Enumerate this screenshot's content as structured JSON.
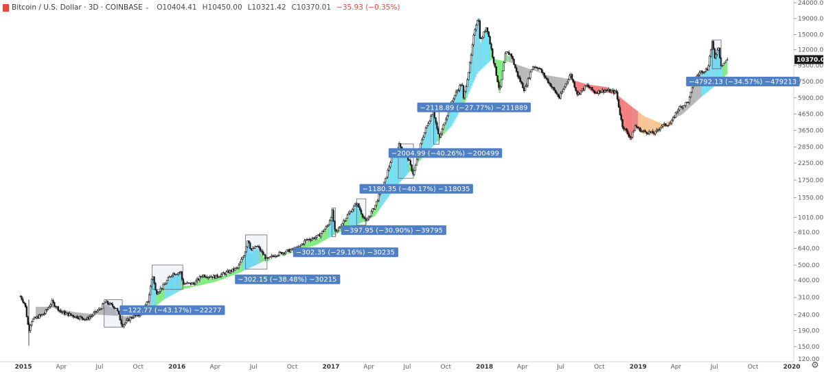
{
  "header": {
    "symbol": "Bitcoin / U.S. Dollar · 3D · COINBASE",
    "open": "O10404.41",
    "high": "H10450.00",
    "low": "L10321.42",
    "close": "C10370.01",
    "change": "−35.93 (−0.35%)"
  },
  "last_price": "10370.01",
  "colors": {
    "candle": "#1a1a1a",
    "annotation_bg": "#4f7fc4",
    "ribbon_bull": "#33dd33",
    "ribbon_cool": "#22c8e8",
    "ribbon_bear": "#e83030",
    "ribbon_neutral": "#8a8a8a",
    "ribbon_orange": "#f0a050"
  },
  "settings_icon": "gear-icon",
  "chart_data": {
    "type": "line",
    "scale": "log",
    "ylim": [
      125,
      24000
    ],
    "y_ticks": [
      "24000.00",
      "19000.00",
      "15000.00",
      "12000.00",
      "9500.00",
      "7500.00",
      "5900.00",
      "4650.00",
      "3650.00",
      "2850.00",
      "2250.00",
      "1750.00",
      "1350.00",
      "1010.00",
      "810.00",
      "640.00",
      "500.00",
      "400.00",
      "310.00",
      "240.00",
      "190.00",
      "150.00",
      "120.00"
    ],
    "x_ticks": [
      {
        "label": "2015",
        "date": "2015-01-01",
        "year": true
      },
      {
        "label": "Apr",
        "date": "2015-04-01"
      },
      {
        "label": "Jul",
        "date": "2015-07-01"
      },
      {
        "label": "Oct",
        "date": "2015-10-01"
      },
      {
        "label": "2016",
        "date": "2016-01-01",
        "year": true
      },
      {
        "label": "Apr",
        "date": "2016-04-01"
      },
      {
        "label": "Jul",
        "date": "2016-07-01"
      },
      {
        "label": "Oct",
        "date": "2016-10-01"
      },
      {
        "label": "2017",
        "date": "2017-01-01",
        "year": true
      },
      {
        "label": "Apr",
        "date": "2017-04-01"
      },
      {
        "label": "Jul",
        "date": "2017-07-01"
      },
      {
        "label": "Oct",
        "date": "2017-10-01"
      },
      {
        "label": "2018",
        "date": "2018-01-01",
        "year": true
      },
      {
        "label": "Apr",
        "date": "2018-04-01"
      },
      {
        "label": "Jul",
        "date": "2018-07-01"
      },
      {
        "label": "Oct",
        "date": "2018-10-01"
      },
      {
        "label": "2019",
        "date": "2019-01-01",
        "year": true
      },
      {
        "label": "Apr",
        "date": "2019-04-01"
      },
      {
        "label": "Jul",
        "date": "2019-07-01"
      },
      {
        "label": "Oct",
        "date": "2019-10-01"
      },
      {
        "label": "2020",
        "date": "2020-01-01",
        "year": true
      }
    ],
    "price_path": [
      [
        "2014-12-25",
        315
      ],
      [
        "2015-01-05",
        280
      ],
      [
        "2015-01-14",
        190
      ],
      [
        "2015-01-20",
        220
      ],
      [
        "2015-02-01",
        230
      ],
      [
        "2015-02-20",
        245
      ],
      [
        "2015-03-10",
        290
      ],
      [
        "2015-04-01",
        250
      ],
      [
        "2015-05-01",
        236
      ],
      [
        "2015-06-01",
        225
      ],
      [
        "2015-07-01",
        260
      ],
      [
        "2015-07-15",
        290
      ],
      [
        "2015-08-10",
        265
      ],
      [
        "2015-08-24",
        205
      ],
      [
        "2015-09-15",
        232
      ],
      [
        "2015-10-10",
        245
      ],
      [
        "2015-10-25",
        300
      ],
      [
        "2015-11-04",
        440
      ],
      [
        "2015-11-12",
        330
      ],
      [
        "2015-12-01",
        370
      ],
      [
        "2015-12-20",
        440
      ],
      [
        "2016-01-10",
        450
      ],
      [
        "2016-01-15",
        380
      ],
      [
        "2016-02-10",
        380
      ],
      [
        "2016-03-01",
        430
      ],
      [
        "2016-04-01",
        420
      ],
      [
        "2016-05-01",
        450
      ],
      [
        "2016-05-25",
        480
      ],
      [
        "2016-06-10",
        600
      ],
      [
        "2016-06-18",
        740
      ],
      [
        "2016-06-25",
        620
      ],
      [
        "2016-07-10",
        660
      ],
      [
        "2016-08-02",
        540
      ],
      [
        "2016-08-20",
        580
      ],
      [
        "2016-09-15",
        610
      ],
      [
        "2016-10-15",
        640
      ],
      [
        "2016-11-01",
        720
      ],
      [
        "2016-12-01",
        760
      ],
      [
        "2016-12-25",
        900
      ],
      [
        "2017-01-04",
        1100
      ],
      [
        "2017-01-11",
        790
      ],
      [
        "2017-02-01",
        970
      ],
      [
        "2017-03-03",
        1250
      ],
      [
        "2017-03-25",
        940
      ],
      [
        "2017-04-15",
        1190
      ],
      [
        "2017-05-10",
        1750
      ],
      [
        "2017-05-25",
        2450
      ],
      [
        "2017-06-12",
        2950
      ],
      [
        "2017-07-01",
        2500
      ],
      [
        "2017-07-16",
        1900
      ],
      [
        "2017-08-05",
        3200
      ],
      [
        "2017-08-20",
        4100
      ],
      [
        "2017-09-01",
        4900
      ],
      [
        "2017-09-15",
        3200
      ],
      [
        "2017-10-01",
        4400
      ],
      [
        "2017-10-20",
        6000
      ],
      [
        "2017-11-08",
        7400
      ],
      [
        "2017-11-12",
        5800
      ],
      [
        "2017-11-28",
        10000
      ],
      [
        "2017-12-08",
        16000
      ],
      [
        "2017-12-17",
        19700
      ],
      [
        "2017-12-22",
        13500
      ],
      [
        "2018-01-06",
        17000
      ],
      [
        "2018-01-20",
        11000
      ],
      [
        "2018-02-06",
        6500
      ],
      [
        "2018-02-20",
        11500
      ],
      [
        "2018-03-05",
        11200
      ],
      [
        "2018-03-20",
        8300
      ],
      [
        "2018-04-06",
        6600
      ],
      [
        "2018-04-25",
        9400
      ],
      [
        "2018-05-10",
        9200
      ],
      [
        "2018-06-01",
        7500
      ],
      [
        "2018-06-28",
        5900
      ],
      [
        "2018-07-24",
        8400
      ],
      [
        "2018-08-10",
        6200
      ],
      [
        "2018-09-01",
        7100
      ],
      [
        "2018-09-20",
        6400
      ],
      [
        "2018-10-15",
        6600
      ],
      [
        "2018-11-10",
        6400
      ],
      [
        "2018-11-20",
        4500
      ],
      [
        "2018-11-25",
        3900
      ],
      [
        "2018-12-15",
        3250
      ],
      [
        "2018-12-25",
        3900
      ],
      [
        "2019-01-10",
        3600
      ],
      [
        "2019-02-10",
        3500
      ],
      [
        "2019-02-25",
        3900
      ],
      [
        "2019-03-20",
        4050
      ],
      [
        "2019-04-05",
        5000
      ],
      [
        "2019-05-01",
        5600
      ],
      [
        "2019-05-15",
        7800
      ],
      [
        "2019-05-30",
        8700
      ],
      [
        "2019-06-15",
        9000
      ],
      [
        "2019-06-26",
        13500
      ],
      [
        "2019-07-02",
        10500
      ],
      [
        "2019-07-10",
        12800
      ],
      [
        "2019-07-17",
        9600
      ],
      [
        "2019-07-25",
        9900
      ],
      [
        "2019-08-01",
        10370
      ]
    ],
    "ribbon_path": [
      [
        "2015-01-20",
        270
      ],
      [
        "2015-03-01",
        270
      ],
      [
        "2015-05-01",
        250
      ],
      [
        "2015-07-01",
        240
      ],
      [
        "2015-09-01",
        235
      ],
      [
        "2015-10-20",
        245
      ],
      [
        "2015-12-01",
        300
      ],
      [
        "2016-01-15",
        350
      ],
      [
        "2016-04-01",
        390
      ],
      [
        "2016-06-01",
        450
      ],
      [
        "2016-08-01",
        540
      ],
      [
        "2016-10-01",
        600
      ],
      [
        "2016-12-01",
        680
      ],
      [
        "2017-01-15",
        800
      ],
      [
        "2017-03-01",
        900
      ],
      [
        "2017-04-15",
        1030
      ],
      [
        "2017-06-01",
        1550
      ],
      [
        "2017-07-15",
        2100
      ],
      [
        "2017-09-01",
        2900
      ],
      [
        "2017-10-15",
        3900
      ],
      [
        "2017-11-15",
        5500
      ],
      [
        "2017-12-15",
        8500
      ],
      [
        "2018-01-20",
        10500
      ],
      [
        "2018-03-01",
        10000
      ],
      [
        "2018-04-20",
        9000
      ],
      [
        "2018-06-01",
        8200
      ],
      [
        "2018-07-20",
        7800
      ],
      [
        "2018-09-01",
        7200
      ],
      [
        "2018-10-20",
        6900
      ],
      [
        "2018-12-01",
        5600
      ],
      [
        "2019-01-15",
        4500
      ],
      [
        "2019-03-01",
        4000
      ],
      [
        "2019-04-15",
        4600
      ],
      [
        "2019-06-01",
        6000
      ],
      [
        "2019-07-10",
        7300
      ],
      [
        "2019-08-01",
        8400
      ]
    ],
    "measurements": [
      {
        "start": "2015-07-12",
        "end": "2015-08-24",
        "high": 300,
        "low": 200,
        "label": "−122.77 (−43.17%) −22277",
        "label_at": [
          "2015-08-18",
          257
        ]
      },
      {
        "start": "2015-11-03",
        "end": "2016-01-15",
        "high": 500,
        "low": 350,
        "label": "−302.15 (−38.48%) −30215",
        "label_at": [
          "2016-05-18",
          405
        ]
      },
      {
        "start": "2016-06-12",
        "end": "2016-08-02",
        "high": 780,
        "low": 470,
        "label": "−302.35 (−29.16%) −30235",
        "label_at": [
          "2016-10-03",
          604
        ]
      },
      {
        "start": "2017-01-03",
        "end": "2017-01-12",
        "high": 1160,
        "low": 760,
        "label": "−397.95 (−30.90%) −39795",
        "label_at": [
          "2017-01-25",
          837
        ]
      },
      {
        "start": "2017-03-03",
        "end": "2017-03-25",
        "high": 1330,
        "low": 900,
        "label": "−1180.35 (−40.17%) −118035",
        "label_at": [
          "2017-03-10",
          1540
        ]
      },
      {
        "start": "2017-06-10",
        "end": "2017-07-16",
        "high": 2990,
        "low": 1800,
        "label": "−2004.99 (−40.26%) −200499",
        "label_at": [
          "2017-05-18",
          2610
        ]
      },
      {
        "start": "2017-09-02",
        "end": "2017-09-15",
        "high": 4980,
        "low": 2970,
        "label": "−2118.89 (−27.77%) −211889",
        "label_at": [
          "2017-07-25",
          5120
        ]
      },
      {
        "start": "2019-06-26",
        "end": "2019-07-17",
        "high": 13880,
        "low": 9070,
        "label": "−4792.13 (−34.57%) −479213",
        "label_at": [
          "2019-04-25",
          7500
        ]
      }
    ]
  }
}
